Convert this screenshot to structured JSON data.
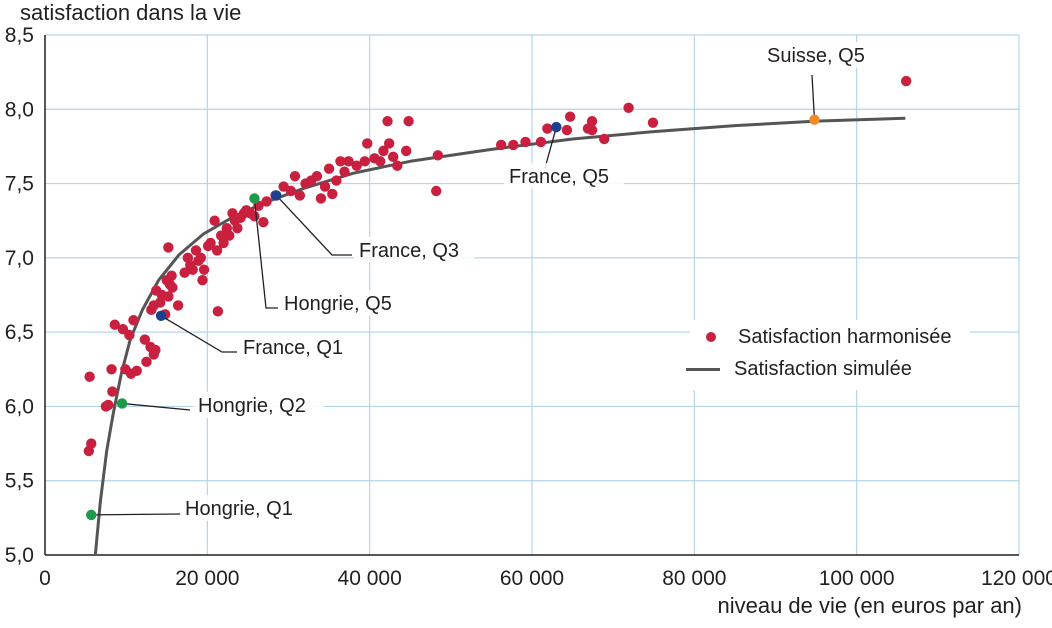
{
  "chart_data": {
    "type": "scatter",
    "ylabel": "satisfaction dans la vie",
    "xlabel": "niveau de vie (en euros par an)",
    "xlim": [
      0,
      120000
    ],
    "ylim": [
      5.0,
      8.5
    ],
    "x_ticks": [
      0,
      20000,
      40000,
      60000,
      80000,
      100000,
      120000
    ],
    "x_tick_labels": [
      "0",
      "20 000",
      "40 000",
      "60 000",
      "80 000",
      "100 000",
      "120 000"
    ],
    "y_ticks": [
      5.0,
      5.5,
      6.0,
      6.5,
      7.0,
      7.5,
      8.0,
      8.5
    ],
    "y_tick_labels": [
      "5,0",
      "5,5",
      "6,0",
      "6,5",
      "7,0",
      "7,5",
      "8,0",
      "8,5"
    ],
    "grid": true,
    "legend_position": "right-middle",
    "colors": {
      "harmonized": "#c8203e",
      "simulated": "#555555",
      "france": "#1f3f8f",
      "hongrie": "#1e9a4a",
      "suisse": "#f08a24",
      "grid": "#b5d5ea",
      "axis": "#231f20"
    },
    "series": [
      {
        "name": "Satisfaction harmonisée",
        "kind": "points",
        "points": [
          [
            5500,
            6.2
          ],
          [
            5400,
            5.7
          ],
          [
            5700,
            5.75
          ],
          [
            7500,
            6.0
          ],
          [
            7800,
            6.01
          ],
          [
            8300,
            6.1
          ],
          [
            8200,
            6.25
          ],
          [
            8600,
            6.55
          ],
          [
            9600,
            6.52
          ],
          [
            9900,
            6.25
          ],
          [
            10400,
            6.48
          ],
          [
            10600,
            6.22
          ],
          [
            10900,
            6.58
          ],
          [
            11300,
            6.24
          ],
          [
            12300,
            6.45
          ],
          [
            12500,
            6.3
          ],
          [
            13000,
            6.4
          ],
          [
            13400,
            6.35
          ],
          [
            13600,
            6.38
          ],
          [
            13100,
            6.65
          ],
          [
            13400,
            6.68
          ],
          [
            13700,
            6.78
          ],
          [
            14200,
            6.7
          ],
          [
            14400,
            6.75
          ],
          [
            14800,
            6.62
          ],
          [
            15200,
            6.74
          ],
          [
            15400,
            6.82
          ],
          [
            15000,
            6.85
          ],
          [
            15600,
            6.88
          ],
          [
            15200,
            7.07
          ],
          [
            15700,
            6.8
          ],
          [
            16400,
            6.68
          ],
          [
            17200,
            6.9
          ],
          [
            17600,
            7.0
          ],
          [
            17900,
            6.95
          ],
          [
            18200,
            6.92
          ],
          [
            18600,
            7.05
          ],
          [
            18900,
            6.98
          ],
          [
            19200,
            7.0
          ],
          [
            19600,
            6.92
          ],
          [
            19400,
            6.85
          ],
          [
            20100,
            7.08
          ],
          [
            20400,
            7.1
          ],
          [
            20900,
            7.25
          ],
          [
            21200,
            7.05
          ],
          [
            21700,
            7.15
          ],
          [
            21300,
            6.64
          ],
          [
            22000,
            7.1
          ],
          [
            22400,
            7.2
          ],
          [
            22700,
            7.15
          ],
          [
            23100,
            7.3
          ],
          [
            23400,
            7.25
          ],
          [
            23700,
            7.2
          ],
          [
            24100,
            7.27
          ],
          [
            24500,
            7.3
          ],
          [
            24800,
            7.32
          ],
          [
            25300,
            7.3
          ],
          [
            25800,
            7.28
          ],
          [
            26300,
            7.35
          ],
          [
            26900,
            7.24
          ],
          [
            27300,
            7.38
          ],
          [
            28400,
            7.42
          ],
          [
            29400,
            7.48
          ],
          [
            30300,
            7.45
          ],
          [
            30800,
            7.55
          ],
          [
            31400,
            7.42
          ],
          [
            32100,
            7.5
          ],
          [
            32800,
            7.52
          ],
          [
            33500,
            7.55
          ],
          [
            34000,
            7.4
          ],
          [
            34500,
            7.48
          ],
          [
            35000,
            7.6
          ],
          [
            35400,
            7.43
          ],
          [
            35900,
            7.52
          ],
          [
            36400,
            7.65
          ],
          [
            36900,
            7.58
          ],
          [
            37400,
            7.65
          ],
          [
            38400,
            7.62
          ],
          [
            39400,
            7.65
          ],
          [
            39700,
            7.77
          ],
          [
            40600,
            7.67
          ],
          [
            41300,
            7.65
          ],
          [
            41700,
            7.72
          ],
          [
            42400,
            7.77
          ],
          [
            42900,
            7.68
          ],
          [
            43400,
            7.62
          ],
          [
            42200,
            7.92
          ],
          [
            44500,
            7.72
          ],
          [
            44800,
            7.92
          ],
          [
            48200,
            7.45
          ],
          [
            48400,
            7.69
          ],
          [
            56200,
            7.76
          ],
          [
            57700,
            7.76
          ],
          [
            59200,
            7.78
          ],
          [
            61100,
            7.78
          ],
          [
            61900,
            7.87
          ],
          [
            64300,
            7.86
          ],
          [
            64700,
            7.95
          ],
          [
            66900,
            7.87
          ],
          [
            67400,
            7.86
          ],
          [
            67400,
            7.92
          ],
          [
            68900,
            7.8
          ],
          [
            71900,
            8.01
          ],
          [
            74900,
            7.91
          ],
          [
            106100,
            8.19
          ]
        ]
      },
      {
        "name": "Satisfaction simulée",
        "kind": "curve",
        "points": [
          [
            6200,
            5.0
          ],
          [
            6800,
            5.35
          ],
          [
            7600,
            5.7
          ],
          [
            8400,
            5.95
          ],
          [
            9400,
            6.22
          ],
          [
            10500,
            6.45
          ],
          [
            12000,
            6.65
          ],
          [
            14000,
            6.85
          ],
          [
            16500,
            7.02
          ],
          [
            19500,
            7.16
          ],
          [
            23000,
            7.27
          ],
          [
            27000,
            7.37
          ],
          [
            32000,
            7.47
          ],
          [
            38000,
            7.57
          ],
          [
            45000,
            7.65
          ],
          [
            55000,
            7.73
          ],
          [
            65000,
            7.8
          ],
          [
            75000,
            7.85
          ],
          [
            85000,
            7.89
          ],
          [
            95000,
            7.92
          ],
          [
            106000,
            7.94
          ]
        ]
      }
    ],
    "annotations": [
      {
        "label": "Hongrie, Q1",
        "x": 5700,
        "y": 5.27,
        "color": "hongrie"
      },
      {
        "label": "Hongrie, Q2",
        "x": 9500,
        "y": 6.02,
        "color": "hongrie"
      },
      {
        "label": "Hongrie, Q5",
        "x": 25800,
        "y": 7.4,
        "color": "hongrie"
      },
      {
        "label": "France, Q1",
        "x": 14300,
        "y": 6.61,
        "color": "france"
      },
      {
        "label": "France, Q3",
        "x": 28500,
        "y": 7.42,
        "color": "france"
      },
      {
        "label": "France, Q5",
        "x": 63000,
        "y": 7.88,
        "color": "france"
      },
      {
        "label": "Suisse, Q5",
        "x": 94800,
        "y": 7.93,
        "color": "suisse"
      }
    ]
  }
}
